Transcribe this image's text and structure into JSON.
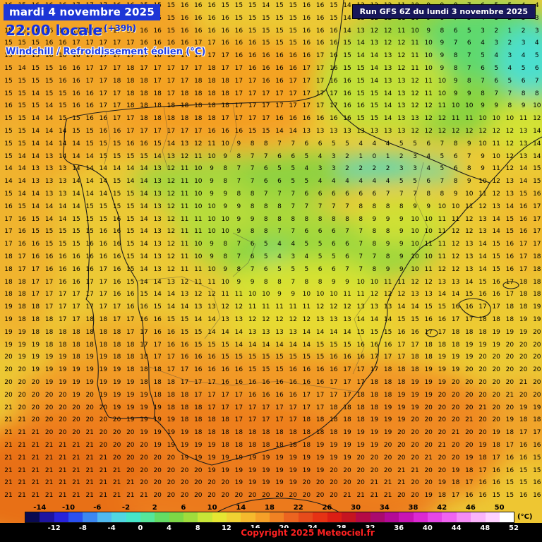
{
  "header": {
    "date_label": "mardi 4 novembre 2025",
    "time_label": "22:00 locale",
    "forecast_offset": "(+39h)",
    "variable_label": "Windchill / Refroidissement éolien (°C)",
    "run_label": "Run GFS 6Z du lundi 3 novembre 2025"
  },
  "footer": {
    "copyright": "Copyright 2025 Meteociel.fr",
    "unit_label": "(°C)"
  },
  "color_scale": {
    "unit": "°C",
    "range_min": -16,
    "range_max": 52,
    "step": 2,
    "top_labels": [
      "-14",
      "-10",
      "-6",
      "-2",
      "2",
      "6",
      "10",
      "14",
      "18",
      "22",
      "26",
      "30",
      "34",
      "38",
      "42",
      "46",
      "50"
    ],
    "bottom_labels": [
      "-12",
      "-8",
      "-4",
      "0",
      "4",
      "8",
      "12",
      "16",
      "20",
      "24",
      "28",
      "32",
      "36",
      "40",
      "44",
      "48",
      "52"
    ],
    "segment_colors": [
      "#0a0a50",
      "#1e14a0",
      "#2823dc",
      "#2a50f0",
      "#3c87f0",
      "#50b9ee",
      "#50d7e1",
      "#46e6c8",
      "#55e69b",
      "#64dc64",
      "#7dd746",
      "#a0dc3c",
      "#c8e637",
      "#e6e632",
      "#f0d232",
      "#f5b92d",
      "#f5a028",
      "#f08223",
      "#eb6420",
      "#e64b1b",
      "#e63214",
      "#dc1e14",
      "#c61420",
      "#b40a46",
      "#aa0a6e",
      "#b40a96",
      "#c814b4",
      "#dc28d2",
      "#e646e6",
      "#f064f0",
      "#f58cf5",
      "#fab4fa",
      "#ffd2ff",
      "#ffffff"
    ]
  },
  "grid": {
    "rows": 40,
    "cols": 40,
    "values": [
      "16 15 16 16 16 17 17 17 16 16 15 15 15 16 16 16 15 15 15 14 15 15 16 16 15 14 13 12 12 11 10 9 9 8 7 6 5 5 4 4",
      "15 15 16 16 16 17 17 17 17 16 16 15 15 16 16 16 16 15 15 15 15 15 16 16 15 14 13 12 12 11 10 9 8 7 5 4 3 2 3 3",
      "15 15 16 16 17 17 17 17 17 16 16 16 15 16 16 16 16 16 15 15 15 15 16 16 16 14 13 12 12 11 10 9 8 6 5 3 2 1 2 3",
      "15 15 15 16 16 17 17 17 17 17 16 16 16 16 17 17 16 16 16 15 15 15 16 16 16 15 14 13 12 12 11 10 9 7 6 4 3 2 3 4",
      "15 15 15 16 16 16 17 17 17 17 17 16 16 17 17 17 17 16 16 16 16 16 16 17 16 15 14 14 13 12 11 10 9 8 7 5 4 3 4 5",
      "15 14 15 15 16 16 17 17 17 18 17 17 17 17 17 18 17 17 16 16 16 16 17 17 16 15 15 14 13 12 11 10 9 8 7 6 5 4 5 6",
      "15 15 15 15 16 16 17 17 18 18 18 17 17 17 18 18 18 17 17 16 16 17 17 17 16 16 15 14 13 13 12 11 10 9 8 7 6 5 6 7",
      "15 15 14 15 15 16 16 17 17 18 18 18 17 18 18 18 18 17 17 17 17 17 17 17 17 16 15 15 14 13 12 11 10 9 9 8 7 7 8 8",
      "16 15 15 14 15 16 16 17 17 18 18 18 18 18 18 18 18 17 17 17 17 17 17 17 17 16 16 15 14 13 12 12 11 10 10 9 9 8 9 10",
      "15 15 14 14 15 15 16 16 17 17 18 18 18 18 18 18 17 17 17 17 16 16 16 16 16 16 15 15 14 13 13 12 12 11 11 10 10 10 11 12",
      "15 15 14 14 14 15 15 16 16 17 17 17 17 17 17 16 16 16 15 15 14 14 13 13 13 13 13 13 13 13 12 12 12 12 12 12 12 12 13 14",
      "15 15 14 14 14 14 15 15 15 16 16 15 14 13 12 11 10 9 8 8 7 7 6 6 5 5 4 4 4 5 5 6 7 8 9 10 11 12 13 14",
      "15 14 14 13 14 14 14 15 15 15 15 14 13 12 11 10 9 8 7 7 6 6 5 4 3 2 1 0 1 2 3 4 5 6 7 9 10 12 13 14",
      "14 14 13 13 13 14 14 14 14 14 14 13 12 11 10 9 8 7 7 6 5 5 4 3 3 2 2 2 2 3 3 4 5 6 8 9 11 12 14 15",
      "14 14 13 13 13 14 14 14 15 14 14 13 12 11 10 9 8 7 7 6 6 5 5 4 4 4 4 4 4 5 5 6 7 8 9 10 12 13 14 15",
      "15 14 14 13 13 14 14 14 15 15 14 13 12 11 10 9 9 8 8 7 7 7 6 6 6 6 6 6 7 7 7 8 8 9 10 11 12 13 15 16",
      "16 15 14 14 14 14 15 15 15 15 14 13 12 11 10 10 9 9 8 8 8 7 7 7 7 7 8 8 8 8 9 9 10 10 11 12 13 14 16 17",
      "17 16 15 14 14 15 15 15 16 15 14 13 12 11 11 10 10 9 9 8 8 8 8 8 8 8 8 9 9 9 10 10 11 11 12 13 14 15 16 17",
      "17 16 15 15 15 15 15 16 16 15 14 13 12 11 11 10 10 9 8 8 7 7 6 6 6 7 7 8 8 9 10 10 11 12 12 13 14 15 16 17",
      "17 16 16 15 15 15 16 16 16 15 14 13 12 11 10 9 8 7 6 5 4 4 5 5 6 6 7 8 9 9 10 11 11 12 13 14 15 16 17 17",
      "18 17 16 16 16 16 16 16 16 15 14 13 12 11 10 9 8 7 6 5 4 3 4 5 5 6 7 7 8 9 10 10 11 12 13 14 15 16 17 18",
      "18 17 17 16 16 16 16 17 16 15 14 13 12 11 11 10 9 8 7 6 5 5 5 6 6 7 7 8 9 9 10 11 12 12 13 14 15 16 17 18",
      "18 18 17 17 16 16 17 17 16 15 14 14 13 12 11 11 10 9 9 8 8 7 8 8 9 9 10 10 11 11 12 12 13 13 14 15 16 17 18 18",
      "18 18 17 17 17 17 17 17 16 16 15 14 14 13 12 12 11 11 10 10 9 9 10 10 10 11 11 12 12 12 13 13 14 14 15 16 16 17 18 18",
      "19 18 18 17 17 17 17 17 17 16 16 15 14 14 13 13 12 12 11 11 11 11 11 12 12 12 13 13 13 14 14 15 15 16 16 17 17 18 18 19",
      "19 18 18 18 17 17 18 18 17 17 16 16 15 15 14 14 13 13 12 12 12 12 12 13 13 13 14 14 14 15 15 16 16 17 17 18 18 18 19 19",
      "19 19 18 18 18 18 18 18 18 17 17 16 16 15 15 14 14 14 13 13 13 13 14 14 14 14 15 15 15 16 16 17 17 18 18 18 19 19 19 20",
      "19 19 19 18 18 18 18 18 18 18 17 17 16 16 15 15 15 14 14 14 14 14 14 15 15 15 16 16 16 17 17 18 18 18 19 19 19 20 20 20",
      "20 19 19 19 19 18 19 19 18 18 18 17 17 16 16 16 15 15 15 15 15 15 15 15 16 16 16 17 17 17 18 18 19 19 19 20 20 20 20 20",
      "20 20 19 19 19 19 19 19 19 18 18 18 17 17 16 16 16 16 15 15 15 16 16 16 16 17 17 17 18 18 18 19 19 19 20 20 20 20 20 20",
      "20 20 20 19 19 19 19 19 19 19 18 18 18 17 17 17 16 16 16 16 16 16 16 16 17 17 17 18 18 18 19 19 19 20 20 20 20 20 21 20",
      "20 20 20 20 20 19 20 19 19 19 19 18 18 18 17 17 17 17 16 16 16 16 17 17 17 17 18 18 18 19 19 19 20 20 20 20 20 21 20 20",
      "21 20 20 20 20 20 20 20 19 19 19 19 18 18 18 17 17 17 17 17 17 17 17 17 18 18 18 18 19 19 19 20 20 20 20 21 20 20 19 19",
      "21 21 20 20 20 20 20 20 20 19 19 19 19 18 18 18 18 17 17 17 17 17 18 18 18 18 18 19 19 19 20 20 20 20 21 20 20 19 18 18",
      "21 21 21 20 20 20 21 20 20 20 19 19 19 19 18 18 18 18 18 18 18 18 18 18 18 19 19 19 19 20 20 20 20 21 20 20 19 18 17 17",
      "21 21 21 21 21 21 21 20 20 20 20 19 19 19 19 19 18 18 18 18 18 18 18 19 19 19 19 19 20 20 20 20 21 20 20 19 18 17 16 16",
      "21 21 21 21 21 21 21 21 20 20 20 20 20 19 19 19 19 19 19 19 19 19 19 19 19 19 20 20 20 20 20 21 20 20 19 18 17 16 16 15",
      "21 21 21 21 21 21 21 21 21 20 20 20 20 20 20 19 19 19 19 19 19 19 19 19 20 20 20 20 20 21 21 20 20 19 18 17 16 16 15 15",
      "21 21 21 21 21 21 21 21 21 21 20 20 20 20 20 20 20 19 19 19 19 19 20 20 20 20 20 21 21 21 20 20 19 18 17 16 16 15 15 16",
      "21 21 21 21 21 21 21 21 21 21 21 20 20 20 20 20 20 20 20 20 20 20 20 20 20 21 21 21 21 20 20 19 18 17 16 16 15 15 16 16"
    ]
  }
}
